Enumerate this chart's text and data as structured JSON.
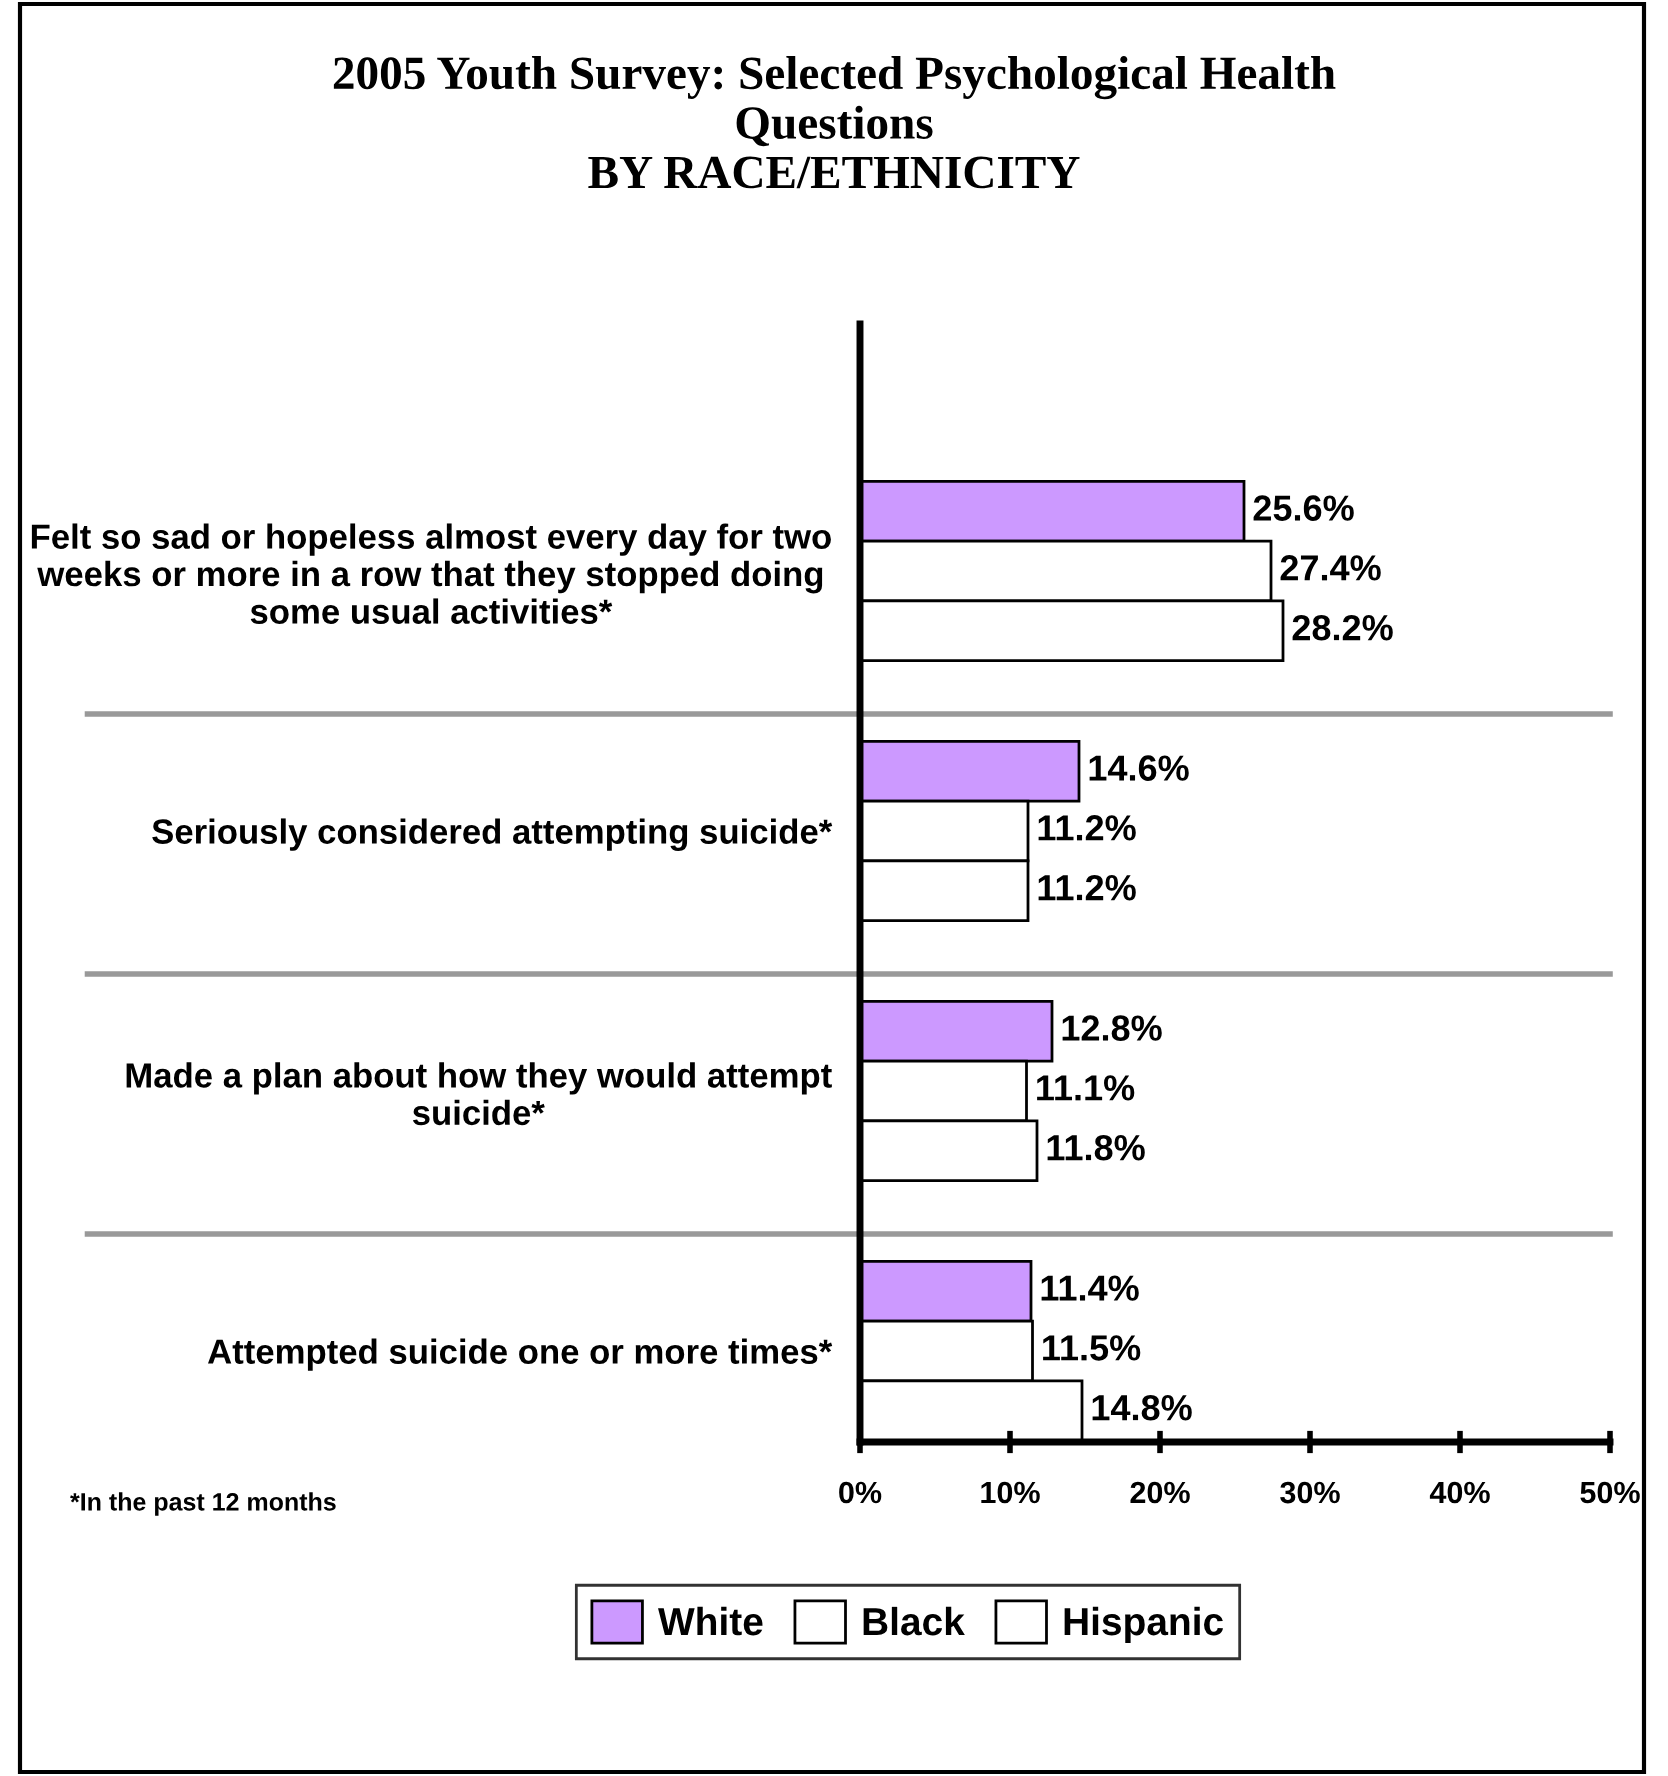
{
  "chart_data": {
    "type": "bar",
    "orientation": "horizontal",
    "title": "2005 Youth Survey: Selected Psychological Health\nQuestions\nBY RACE/ETHNICITY",
    "categories": [
      "Felt so sad or hopeless almost every day for two\nweeks or more in a row that they stopped doing\nsome usual activities*",
      "Seriously considered attempting suicide*",
      "Made a plan about how they would attempt\nsuicide*",
      "Attempted suicide one or more times*"
    ],
    "series": [
      {
        "name": "White",
        "color": "#cc99ff",
        "values": [
          25.6,
          14.6,
          12.8,
          11.4
        ],
        "value_labels": [
          "25.6%",
          "14.6%",
          "12.8%",
          "11.4%"
        ]
      },
      {
        "name": "Black",
        "color": "#ffffff",
        "values": [
          27.4,
          11.2,
          11.1,
          11.5
        ],
        "value_labels": [
          "27.4%",
          "11.2%",
          "11.1%",
          "11.5%"
        ]
      },
      {
        "name": "Hispanic",
        "color": "#ffffff",
        "values": [
          28.2,
          11.2,
          11.8,
          14.8
        ],
        "value_labels": [
          "28.2%",
          "11.2%",
          "11.8%",
          "14.8%"
        ]
      }
    ],
    "xlim": [
      0,
      50
    ],
    "xticks": [
      {
        "value": 0,
        "label": "0%"
      },
      {
        "value": 10,
        "label": "10%"
      },
      {
        "value": 20,
        "label": "20%"
      },
      {
        "value": 30,
        "label": "30%"
      },
      {
        "value": 40,
        "label": "40%"
      },
      {
        "value": 50,
        "label": "50%"
      }
    ],
    "annotations": [
      "*In the past 12 months"
    ],
    "legend": "bottom",
    "grid": false
  }
}
